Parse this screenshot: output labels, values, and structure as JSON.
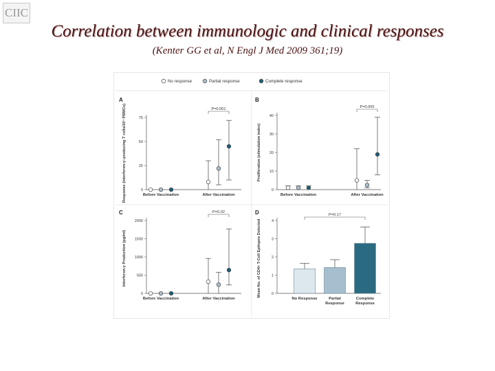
{
  "slide": {
    "logo_text": "CIIC",
    "title": "Correlation between immunologic and clinical responses",
    "subtitle": "(Kenter GG et al, N Engl J Med 2009 361;19)"
  },
  "legend": {
    "items": [
      {
        "label": "No response",
        "fill": "#ffffff"
      },
      {
        "label": "Partial response",
        "fill": "#a9bfcd"
      },
      {
        "label": "Complete response",
        "fill": "#1d5e77"
      }
    ]
  },
  "colors": {
    "no_response": "#ffffff",
    "partial": "#a9bfcd",
    "complete": "#1d5e77",
    "bar_no": "#dde7ee",
    "bar_partial": "#a6bfcf",
    "bar_complete": "#2a6b82",
    "title_red": "#4b1111"
  },
  "chart_data": [
    {
      "panel": "A",
      "type": "scatter",
      "ylabel": "Response (interferon-γ–producing T cells/10⁴ PBMCs)",
      "ylim": [
        0,
        75
      ],
      "yticks": [
        0,
        25,
        50,
        75
      ],
      "categories": [
        "Before Vaccination",
        "After Vaccination"
      ],
      "p_label": "P=0.001",
      "series": [
        {
          "name": "No response",
          "values": [
            0,
            8
          ],
          "err_low": [
            0,
            0
          ],
          "err_high": [
            0,
            30
          ]
        },
        {
          "name": "Partial response",
          "values": [
            0,
            22
          ],
          "err_low": [
            0,
            5
          ],
          "err_high": [
            0,
            52
          ]
        },
        {
          "name": "Complete response",
          "values": [
            0,
            45
          ],
          "err_low": [
            0,
            10
          ],
          "err_high": [
            0,
            72
          ]
        }
      ]
    },
    {
      "panel": "B",
      "type": "scatter",
      "ylabel": "Proliferation (stimulation index)",
      "ylim": [
        0,
        40
      ],
      "yticks": [
        0,
        10,
        20,
        30,
        40
      ],
      "categories": [
        "Before Vaccination",
        "After Vaccination"
      ],
      "p_label": "P=0.005",
      "series": [
        {
          "name": "No response",
          "values": [
            1,
            5
          ],
          "err_low": [
            0,
            0
          ],
          "err_high": [
            2,
            22
          ]
        },
        {
          "name": "Partial response",
          "values": [
            1,
            2.5
          ],
          "err_low": [
            0,
            1
          ],
          "err_high": [
            2,
            5
          ]
        },
        {
          "name": "Complete response",
          "values": [
            1,
            19
          ],
          "err_low": [
            0,
            8
          ],
          "err_high": [
            2,
            39
          ]
        }
      ]
    },
    {
      "panel": "C",
      "type": "scatter",
      "ylabel": "Interferon-γ Production (pg/ml)",
      "ylim": [
        0,
        2000
      ],
      "yticks": [
        0,
        500,
        1000,
        1500,
        2000
      ],
      "categories": [
        "Before Vaccination",
        "After Vaccination"
      ],
      "p_label": "P=0.02",
      "series": [
        {
          "name": "No response",
          "values": [
            0,
            320
          ],
          "err_low": [
            0,
            0
          ],
          "err_high": [
            0,
            960
          ]
        },
        {
          "name": "Partial response",
          "values": [
            0,
            240
          ],
          "err_low": [
            0,
            0
          ],
          "err_high": [
            0,
            580
          ]
        },
        {
          "name": "Complete response",
          "values": [
            0,
            640
          ],
          "err_low": [
            0,
            230
          ],
          "err_high": [
            0,
            1770
          ]
        }
      ]
    },
    {
      "panel": "D",
      "type": "bar",
      "ylabel": "Mean No. of CD4+ T-Cell Epitopes Detected",
      "ylim": [
        0,
        4
      ],
      "yticks": [
        0,
        1,
        2,
        3,
        4
      ],
      "categories": [
        "No Response",
        "Partial Response",
        "Complete Response"
      ],
      "values": [
        1.35,
        1.42,
        2.75
      ],
      "err_high": [
        1.65,
        1.85,
        3.65
      ],
      "p_label": "P=0.17"
    }
  ]
}
